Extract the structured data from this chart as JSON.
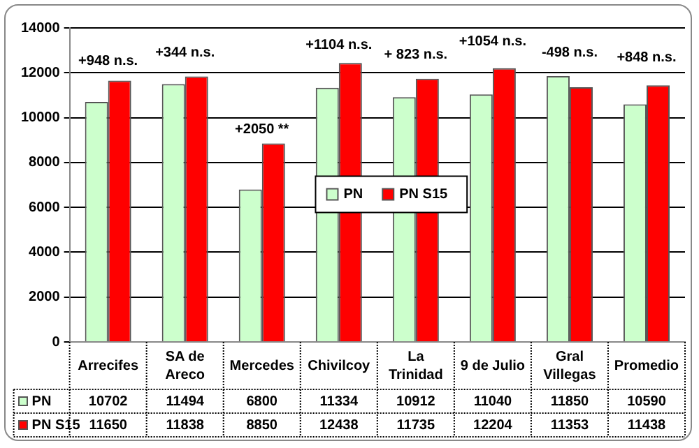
{
  "chart_data": {
    "type": "bar",
    "categories": [
      "Arrecifes",
      "SA de Areco",
      "Mercedes",
      "Chivilcoy",
      "La Trinidad",
      "9 de Julio",
      "Gral Villegas",
      "Promedio"
    ],
    "series": [
      {
        "name": "PN",
        "color": "#ccffcc",
        "values": [
          10702,
          11494,
          6800,
          11334,
          10912,
          11040,
          11850,
          10590
        ]
      },
      {
        "name": "PN S15",
        "color": "#ff0000",
        "values": [
          11650,
          11838,
          8850,
          12438,
          11735,
          12204,
          11353,
          11438
        ]
      }
    ],
    "ylim": [
      0,
      14000
    ],
    "yticks": [
      0,
      2000,
      4000,
      6000,
      8000,
      10000,
      12000,
      14000
    ],
    "grid": "y",
    "legend": "center",
    "data_labels": true,
    "annotations": [
      "+948 n.s.",
      "+344 n.s.",
      "+2050 **",
      "+1104 n.s.",
      "+ 823 n.s.",
      "+1054 n.s.",
      "-498 n.s.",
      "+848 n.s."
    ]
  }
}
